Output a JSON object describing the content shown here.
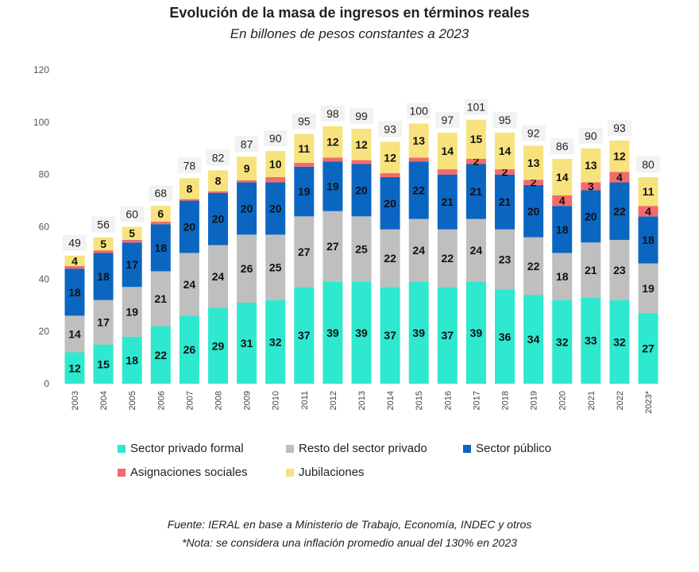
{
  "chart_data": {
    "type": "bar",
    "stacked": true,
    "title": "Evolución de la masa de ingresos en términos reales",
    "subtitle": "En billones de pesos constantes a 2023",
    "categories": [
      "2003",
      "2004",
      "2005",
      "2006",
      "2007",
      "2008",
      "2009",
      "2010",
      "2011",
      "2012",
      "2013",
      "2014",
      "2015",
      "2016",
      "2017",
      "2018",
      "2019",
      "2020",
      "2021",
      "2022",
      "2023*"
    ],
    "ylim": [
      0,
      120
    ],
    "yticks": [
      "0",
      "20",
      "40",
      "60",
      "80",
      "100",
      "120"
    ],
    "grid": false,
    "legend_position": "bottom",
    "series": [
      {
        "name": "Sector privado formal",
        "color": "#2ee8cf",
        "values": [
          12,
          15,
          18,
          22,
          26,
          29,
          31,
          32,
          37,
          39,
          39,
          37,
          39,
          37,
          39,
          36,
          34,
          32,
          33,
          32,
          27
        ],
        "labels": [
          "12",
          "15",
          "18",
          "22",
          "26",
          "29",
          "31",
          "32",
          "37",
          "39",
          "39",
          "37",
          "39",
          "37",
          "39",
          "36",
          "34",
          "32",
          "33",
          "32",
          "27"
        ]
      },
      {
        "name": "Resto del sector privado",
        "color": "#bfbfbf",
        "values": [
          14,
          17,
          19,
          21,
          24,
          24,
          26,
          25,
          27,
          27,
          25,
          22,
          24,
          22,
          24,
          23,
          22,
          18,
          21,
          23,
          19
        ],
        "labels": [
          "14",
          "17",
          "19",
          "21",
          "24",
          "24",
          "26",
          "25",
          "27",
          "27",
          "25",
          "22",
          "24",
          "22",
          "24",
          "23",
          "22",
          "18",
          "21",
          "23",
          "19"
        ]
      },
      {
        "name": "Sector público",
        "color": "#0b66c2",
        "values": [
          18,
          18,
          17,
          18,
          20,
          20,
          20,
          20,
          19,
          19,
          20,
          20,
          22,
          21,
          21,
          21,
          20,
          18,
          20,
          22,
          18
        ],
        "labels": [
          "18",
          "18",
          "17",
          "18",
          "20",
          "20",
          "20",
          "20",
          "19",
          "19",
          "20",
          "20",
          "22",
          "21",
          "21",
          "21",
          "20",
          "18",
          "20",
          "22",
          "18"
        ]
      },
      {
        "name": "Asignaciones sociales",
        "color": "#f46a6a",
        "values": [
          1,
          1,
          1,
          1,
          0.6,
          0.6,
          0.8,
          2,
          1.5,
          1.5,
          1.5,
          1.5,
          1.5,
          2,
          2,
          2,
          2,
          4,
          3,
          4,
          4
        ],
        "labels": [
          "",
          "",
          "",
          "",
          "",
          "",
          "",
          "",
          "",
          "",
          "",
          "",
          "",
          "",
          "2",
          "2",
          "2",
          "4",
          "3",
          "4",
          "4"
        ]
      },
      {
        "name": "Jubilaciones",
        "color": "#f7e27e",
        "values": [
          4,
          5,
          5,
          6,
          8,
          8,
          9,
          10,
          11,
          12,
          12,
          12,
          13,
          14,
          15,
          14,
          13,
          14,
          13,
          12,
          11
        ],
        "labels": [
          "4",
          "5",
          "5",
          "6",
          "8",
          "8",
          "9",
          "10",
          "11",
          "12",
          "12",
          "12",
          "13",
          "14",
          "15",
          "14",
          "13",
          "14",
          "13",
          "12",
          "11"
        ]
      }
    ],
    "totals": [
      "49",
      "56",
      "60",
      "68",
      "78",
      "82",
      "87",
      "90",
      "95",
      "98",
      "99",
      "93",
      "100",
      "97",
      "101",
      "95",
      "92",
      "86",
      "90",
      "93",
      "80"
    ]
  },
  "footnotes": {
    "source": "Fuente: IERAL en base a Ministerio de Trabajo, Economía, INDEC y otros",
    "note": "*Nota: se considera una inflación promedio anual del 130% en 2023"
  }
}
